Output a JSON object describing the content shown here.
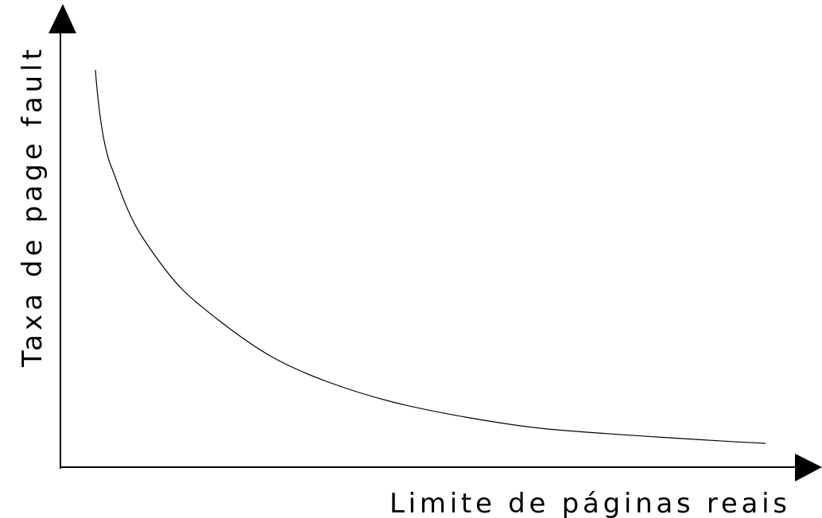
{
  "y_axis_label": "Taxa de page fault",
  "x_axis_label": "Limite de páginas reais"
}
